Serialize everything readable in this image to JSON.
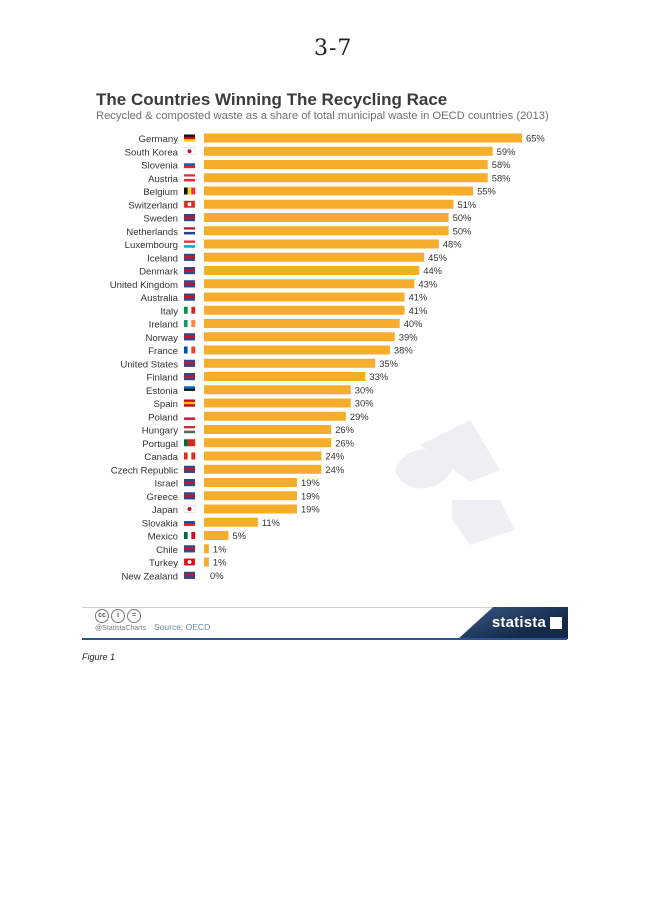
{
  "page_mark": "3-7",
  "header": {
    "title": "The Countries Winning The Recycling Race",
    "subtitle": "Recycled & composted waste as a share of total municipal waste in OECD countries (2013)"
  },
  "footer": {
    "handle": "@StatistaCharts",
    "source": "Source: OECD",
    "brand": "statista"
  },
  "caption": "Figure 1",
  "colors": {
    "bar": "#f7ad2c",
    "brand_dark": "#15294b",
    "rule_blue": "#2b5597"
  },
  "chart_data": {
    "type": "bar",
    "orientation": "horizontal",
    "title": "The Countries Winning The Recycling Race",
    "subtitle": "Recycled & composted waste as a share of total municipal waste in OECD countries (2013)",
    "categories": [
      "Germany",
      "South Korea",
      "Slovenia",
      "Austria",
      "Belgium",
      "Switzerland",
      "Sweden",
      "Netherlands",
      "Luxembourg",
      "Iceland",
      "Denmark",
      "United Kingdom",
      "Australia",
      "Italy",
      "Ireland",
      "Norway",
      "France",
      "United States",
      "Finland",
      "Estonia",
      "Spain",
      "Poland",
      "Hungary",
      "Portugal",
      "Canada",
      "Czech Republic",
      "Israel",
      "Greece",
      "Japan",
      "Slovakia",
      "Mexico",
      "Chile",
      "Turkey",
      "New Zealand"
    ],
    "values": [
      65,
      59,
      58,
      58,
      55,
      51,
      50,
      50,
      48,
      45,
      44,
      43,
      41,
      41,
      40,
      39,
      38,
      35,
      33,
      30,
      30,
      29,
      26,
      26,
      24,
      24,
      19,
      19,
      19,
      11,
      5,
      1,
      1,
      0
    ],
    "value_labels": [
      "65%",
      "59%",
      "58%",
      "58%",
      "55%",
      "51%",
      "50%",
      "50%",
      "48%",
      "45%",
      "44%",
      "43%",
      "41%",
      "41%",
      "40%",
      "39%",
      "38%",
      "35%",
      "33%",
      "30%",
      "30%",
      "29%",
      "26%",
      "26%",
      "24%",
      "24%",
      "19%",
      "19%",
      "19%",
      "11%",
      "5%",
      "1%",
      "1%",
      "0%"
    ],
    "flags": [
      "germany-flag-icon",
      "south-korea-flag-icon",
      "slovenia-flag-icon",
      "austria-flag-icon",
      "belgium-flag-icon",
      "switzerland-flag-icon",
      "sweden-flag-icon",
      "netherlands-flag-icon",
      "luxembourg-flag-icon",
      "iceland-flag-icon",
      "denmark-flag-icon",
      "united-kingdom-flag-icon",
      "australia-flag-icon",
      "italy-flag-icon",
      "ireland-flag-icon",
      "norway-flag-icon",
      "france-flag-icon",
      "united-states-flag-icon",
      "finland-flag-icon",
      "estonia-flag-icon",
      "spain-flag-icon",
      "poland-flag-icon",
      "hungary-flag-icon",
      "portugal-flag-icon",
      "canada-flag-icon",
      "czech-republic-flag-icon",
      "israel-flag-icon",
      "greece-flag-icon",
      "japan-flag-icon",
      "slovakia-flag-icon",
      "mexico-flag-icon",
      "chile-flag-icon",
      "turkey-flag-icon",
      "new-zealand-flag-icon"
    ],
    "xlim": [
      0,
      65
    ],
    "grid": false,
    "legend": "none"
  }
}
